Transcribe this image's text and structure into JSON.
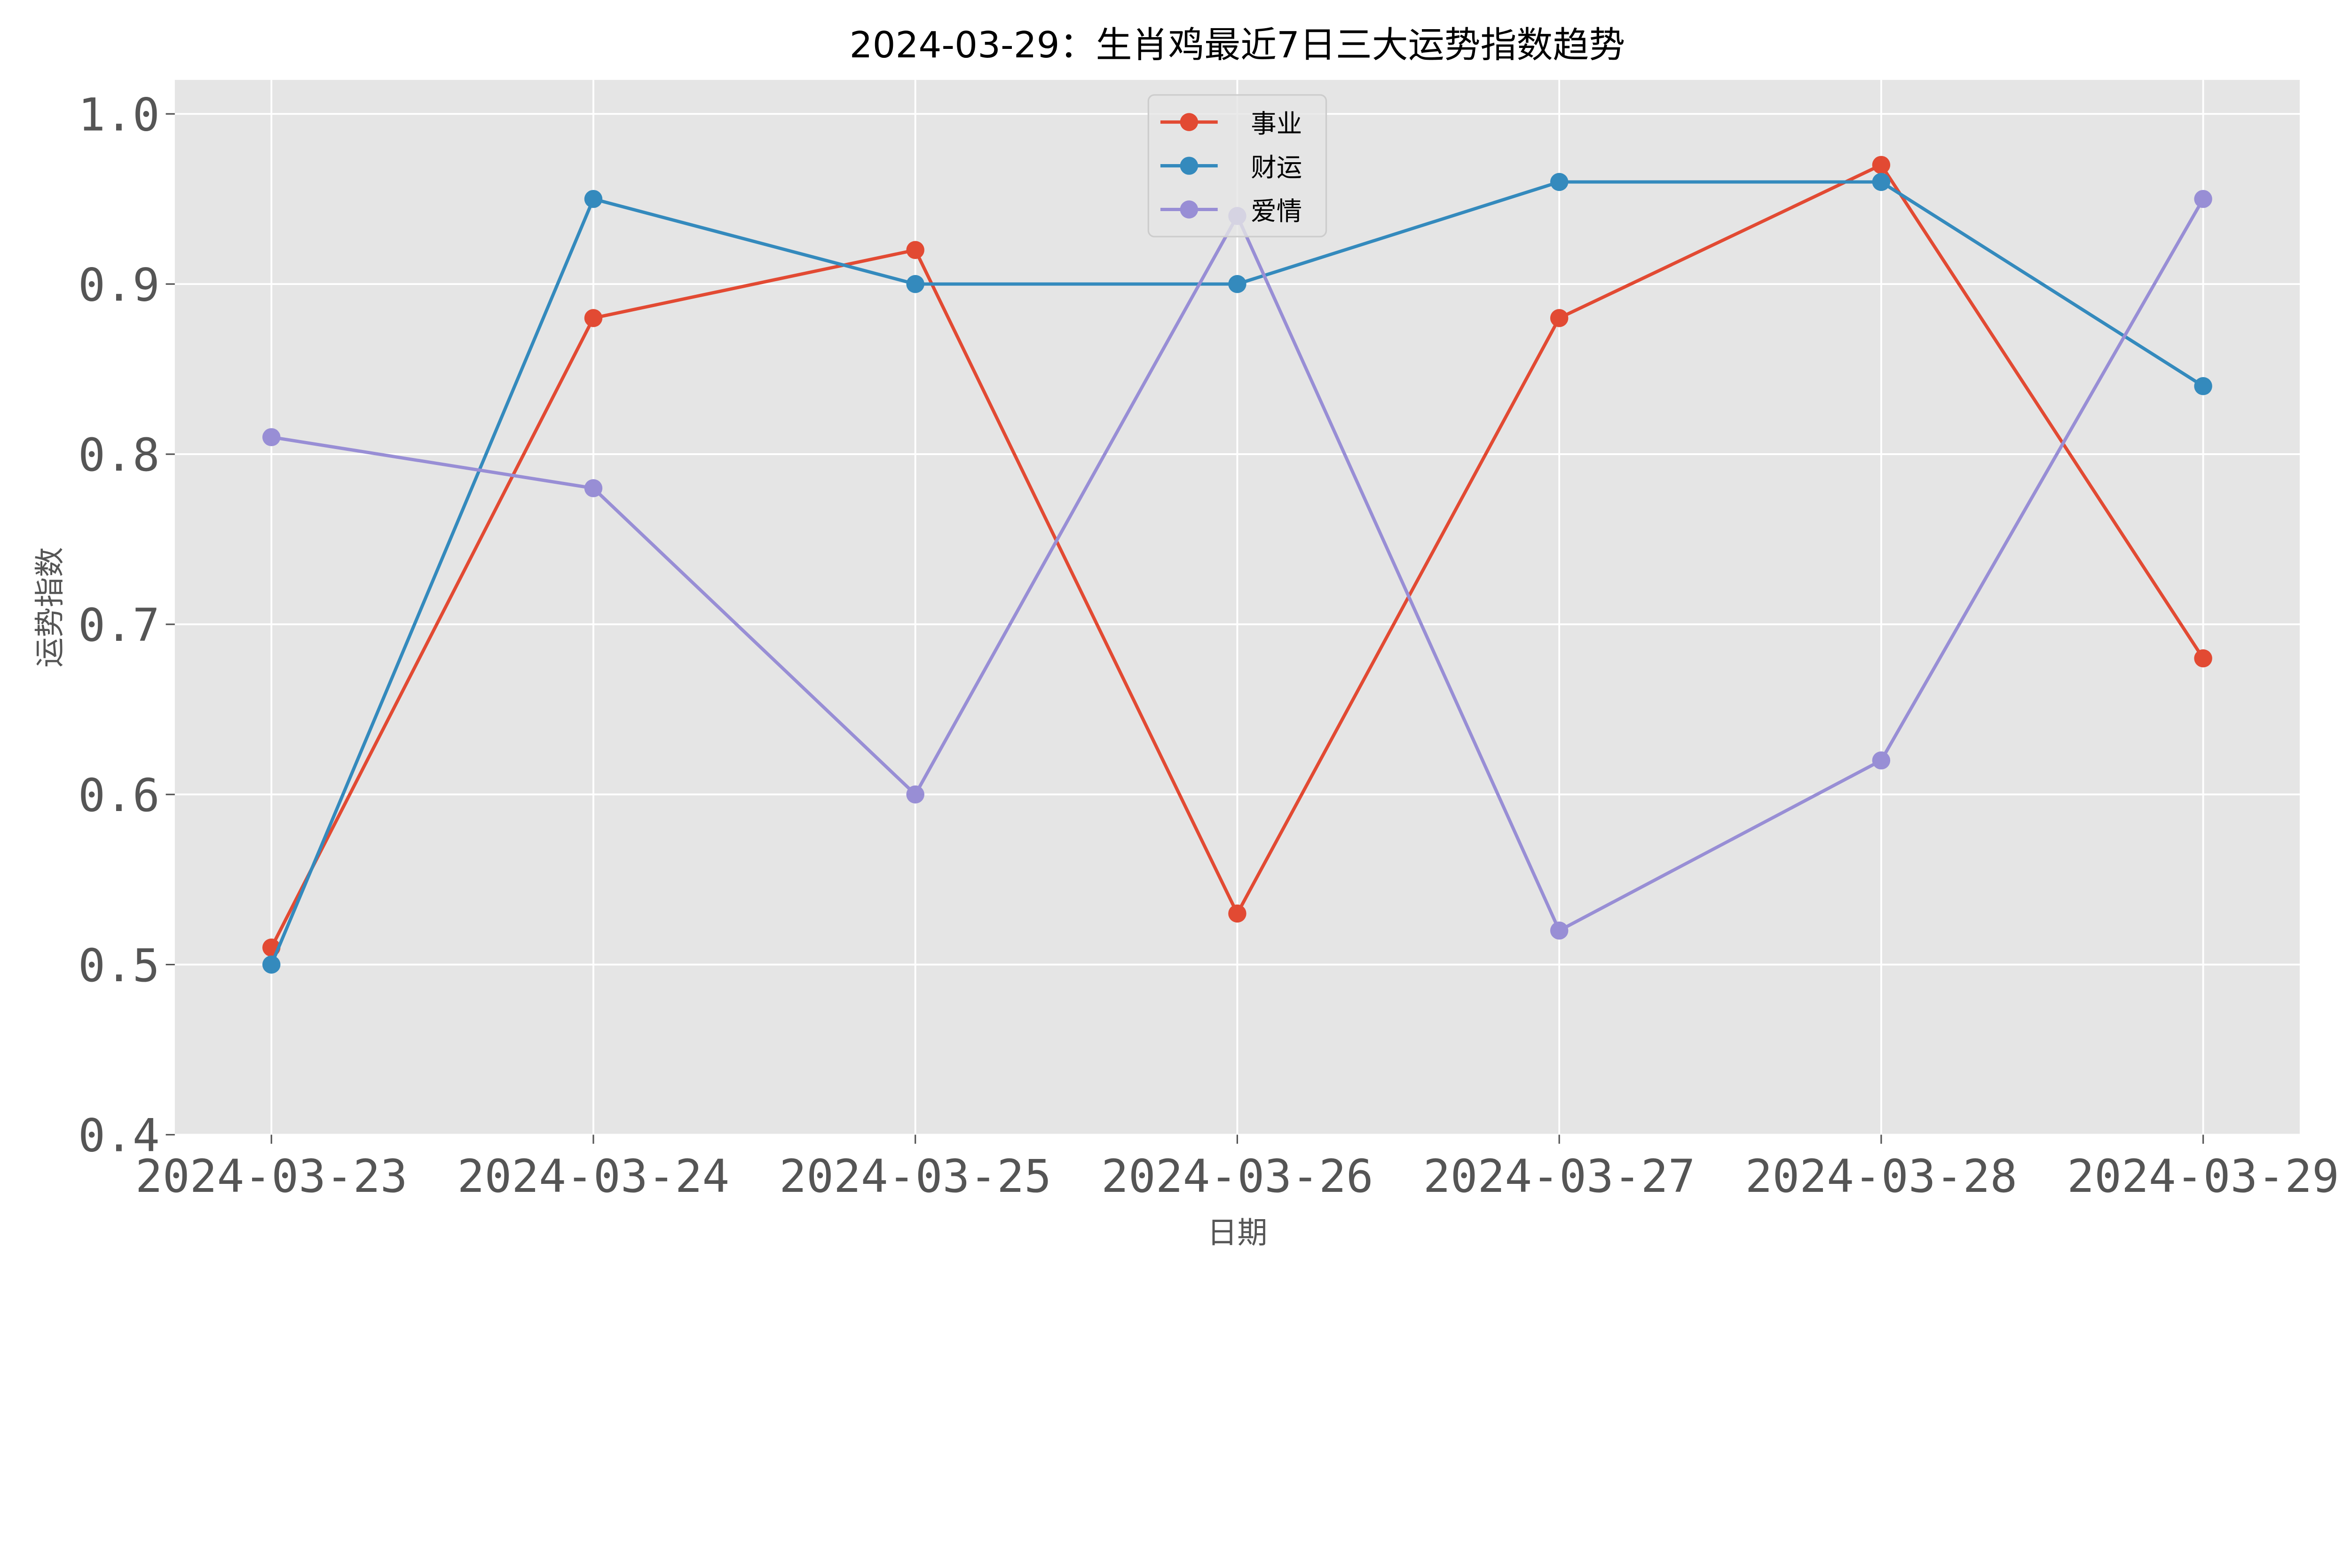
{
  "chart_data": {
    "type": "line",
    "title": "2024-03-29：生肖鸡最近7日三大运势指数趋势",
    "xlabel": "日期",
    "ylabel": "运势指数",
    "categories": [
      "2024-03-23",
      "2024-03-24",
      "2024-03-25",
      "2024-03-26",
      "2024-03-27",
      "2024-03-28",
      "2024-03-29"
    ],
    "ylim": [
      0.4,
      1.02
    ],
    "yticks": [
      "0.4",
      "0.5",
      "0.6",
      "0.7",
      "0.8",
      "0.9",
      "1.0"
    ],
    "grid": true,
    "legend_position": "top-center",
    "background": "#E5E5E5",
    "series": [
      {
        "name": "事业",
        "color": "#E24A33",
        "values": [
          0.51,
          0.88,
          0.92,
          0.53,
          0.88,
          0.97,
          0.68
        ]
      },
      {
        "name": "财运",
        "color": "#348ABD",
        "values": [
          0.5,
          0.95,
          0.9,
          0.9,
          0.96,
          0.96,
          0.84
        ]
      },
      {
        "name": "爱情",
        "color": "#988ED5",
        "values": [
          0.81,
          0.78,
          0.6,
          0.94,
          0.52,
          0.62,
          0.95
        ]
      }
    ]
  }
}
